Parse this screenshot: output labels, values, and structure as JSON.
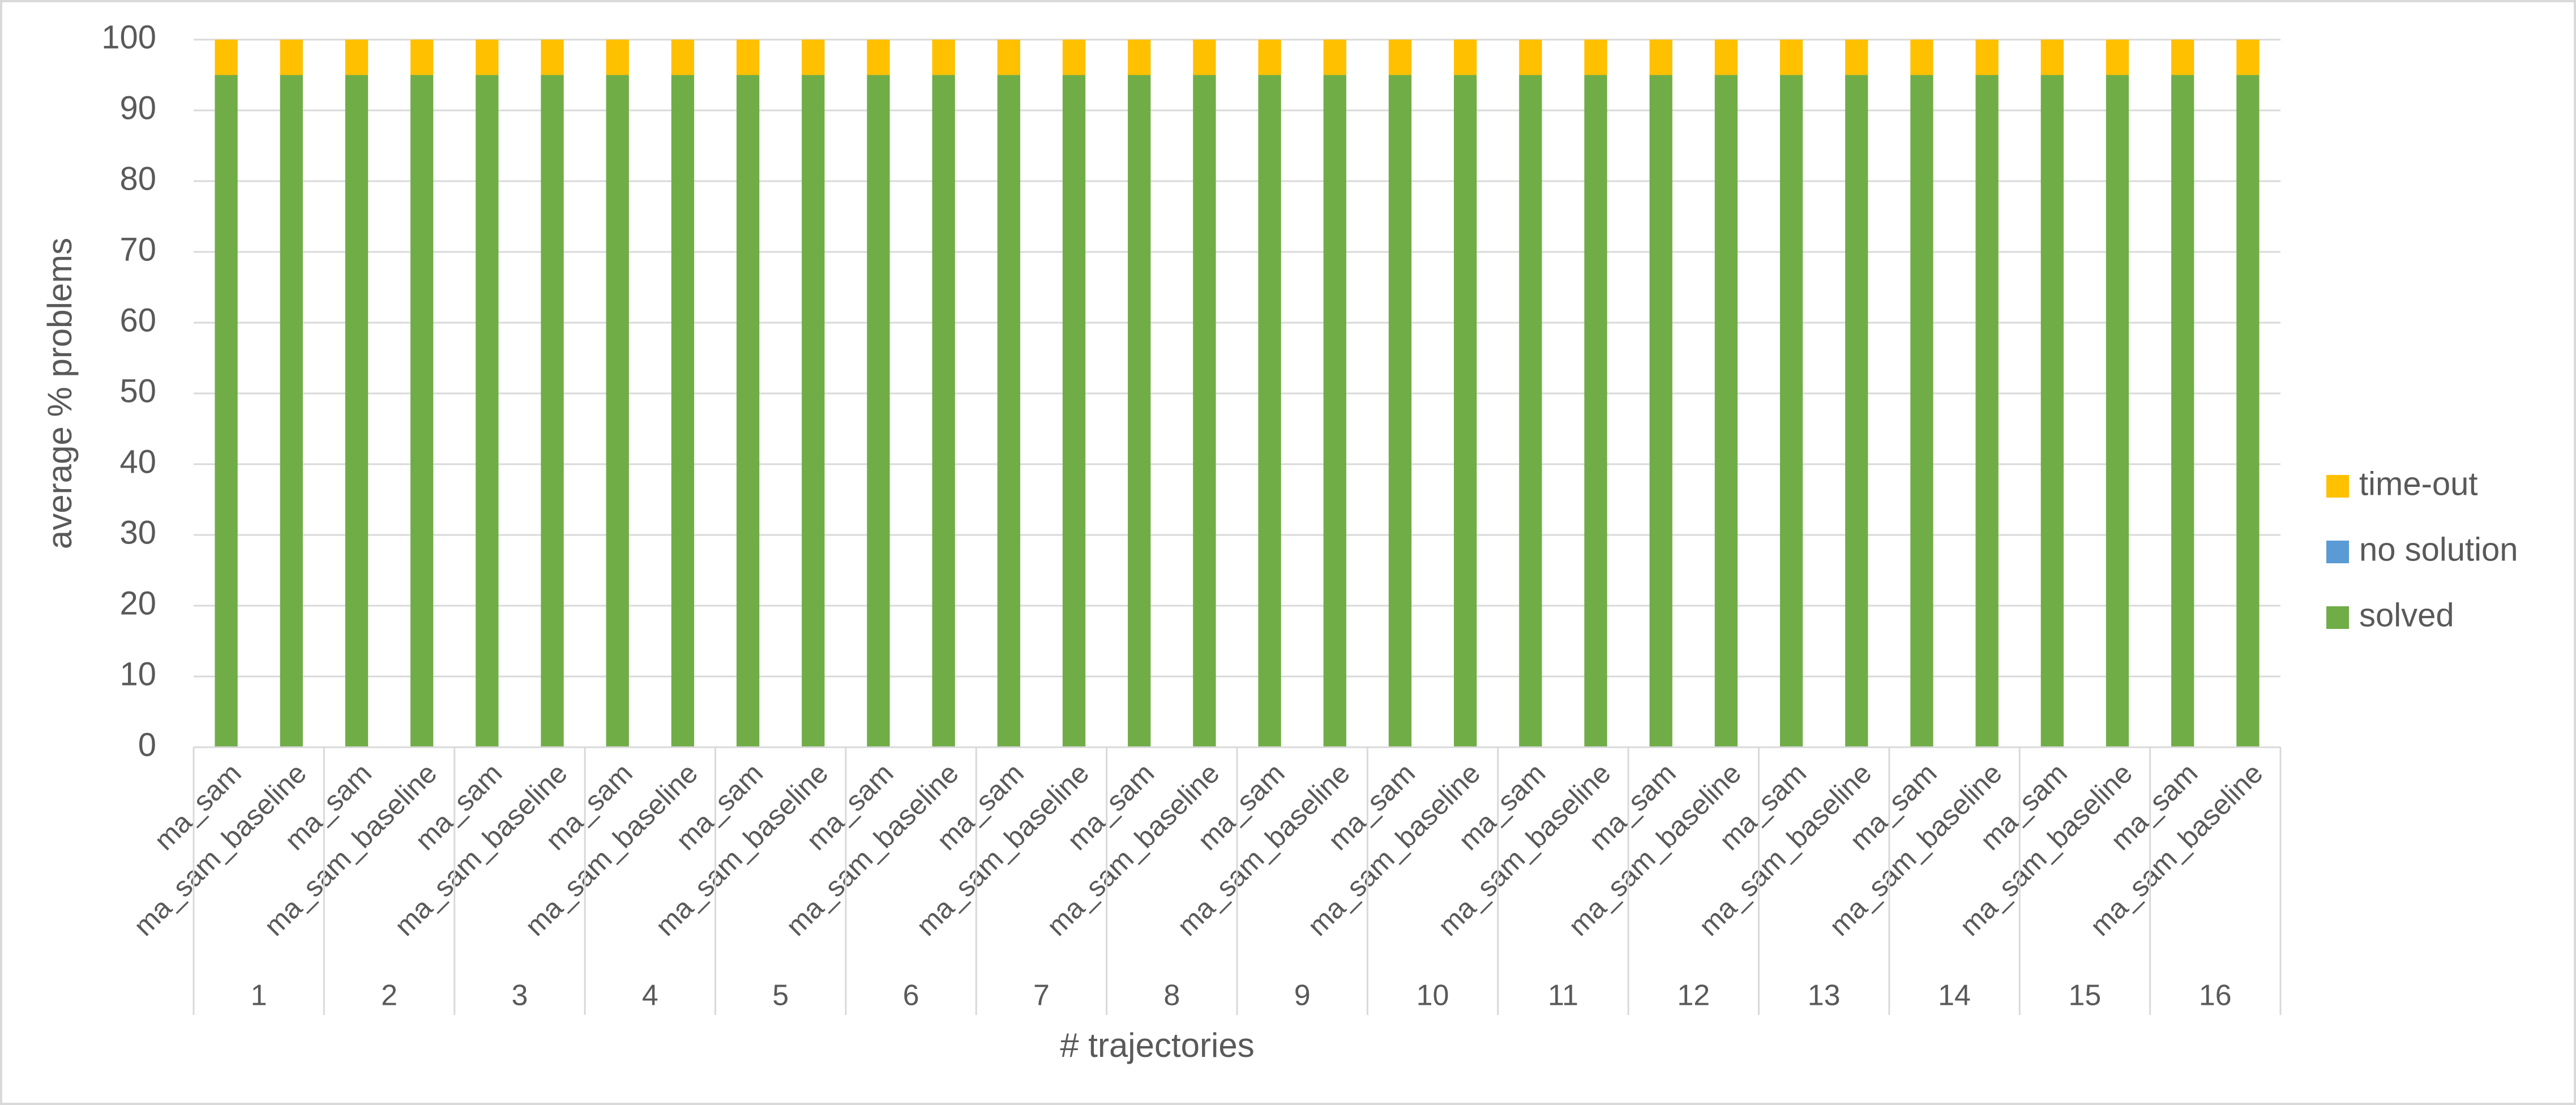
{
  "chart_data": {
    "type": "stacked_bar",
    "x_label": "# trajectories",
    "y_label": "average % problems",
    "categories": [
      "ma_sam",
      "ma_sam_baseline",
      "ma_sam",
      "ma_sam_baseline",
      "ma_sam",
      "ma_sam_baseline",
      "ma_sam",
      "ma_sam_baseline",
      "ma_sam",
      "ma_sam_baseline",
      "ma_sam",
      "ma_sam_baseline",
      "ma_sam",
      "ma_sam_baseline",
      "ma_sam",
      "ma_sam_baseline",
      "ma_sam",
      "ma_sam_baseline",
      "ma_sam",
      "ma_sam_baseline",
      "ma_sam",
      "ma_sam_baseline",
      "ma_sam",
      "ma_sam_baseline",
      "ma_sam",
      "ma_sam_baseline",
      "ma_sam",
      "ma_sam_baseline",
      "ma_sam",
      "ma_sam_baseline",
      "ma_sam",
      "ma_sam_baseline"
    ],
    "groups": [
      "1",
      "2",
      "3",
      "4",
      "5",
      "6",
      "7",
      "8",
      "9",
      "10",
      "11",
      "12",
      "13",
      "14",
      "15",
      "16"
    ],
    "series": [
      {
        "name": "solved",
        "color": "#70ad47",
        "values": [
          95,
          95,
          95,
          95,
          95,
          95,
          95,
          95,
          95,
          95,
          95,
          95,
          95,
          95,
          95,
          95,
          95,
          95,
          95,
          95,
          95,
          95,
          95,
          95,
          95,
          95,
          95,
          95,
          95,
          95,
          95,
          95
        ]
      },
      {
        "name": "no solution",
        "color": "#5b9bd5",
        "values": [
          0,
          0,
          0,
          0,
          0,
          0,
          0,
          0,
          0,
          0,
          0,
          0,
          0,
          0,
          0,
          0,
          0,
          0,
          0,
          0,
          0,
          0,
          0,
          0,
          0,
          0,
          0,
          0,
          0,
          0,
          0,
          0
        ]
      },
      {
        "name": "time-out",
        "color": "#ffc000",
        "values": [
          5,
          5,
          5,
          5,
          5,
          5,
          5,
          5,
          5,
          5,
          5,
          5,
          5,
          5,
          5,
          5,
          5,
          5,
          5,
          5,
          5,
          5,
          5,
          5,
          5,
          5,
          5,
          5,
          5,
          5,
          5,
          5
        ]
      }
    ],
    "ylim": [
      0,
      100
    ],
    "yticks": [
      0,
      10,
      20,
      30,
      40,
      50,
      60,
      70,
      80,
      90,
      100
    ],
    "grid": true,
    "legend": "right"
  }
}
